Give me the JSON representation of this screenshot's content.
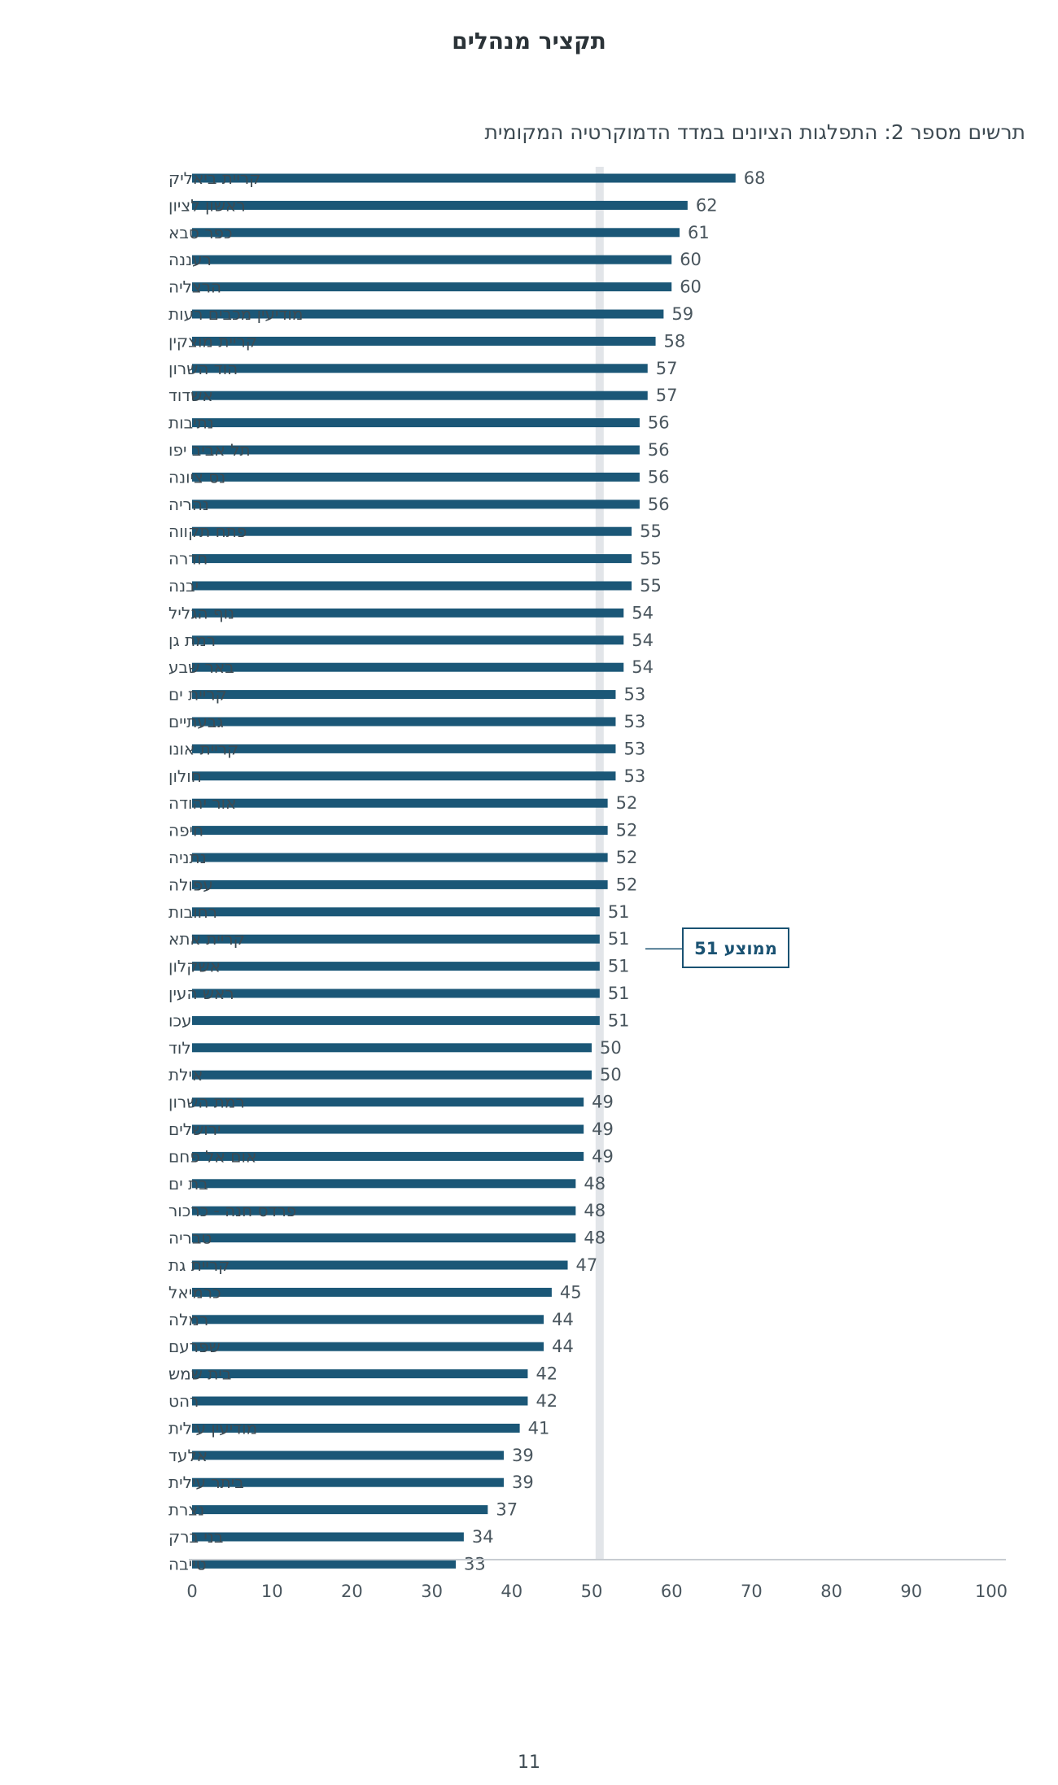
{
  "page": {
    "title": "תקציר מנהלים",
    "page_number": "11"
  },
  "chart_data": {
    "type": "bar",
    "orientation": "horizontal",
    "title": "תרשים מספר 2: התפלגות הציונים במדד הדמוקרטיה המקומית",
    "categories": [
      "קריית ביאליק",
      "ראשון לציון",
      "כפר סבא",
      "רעננה",
      "הרצליה",
      "מודיעין מכבים רעות",
      "קריית מוצקין",
      "הוד השרון",
      "אשדוד",
      "נתיבות",
      "תל אביב יפו",
      "נס ציונה",
      "נהריה",
      "פתח תקווה",
      "חדרה",
      "יבנה",
      "נוף הגליל",
      "רמת גן",
      "באר שבע",
      "קריית ים",
      "גבעתיים",
      "קריית אונו",
      "חולון",
      "אור יהודה",
      "חיפה",
      "נתניה",
      "עפולה",
      "רחובות",
      "קריית אתא",
      "אשקלון",
      "ראש העין",
      "עכו",
      "לוד",
      "אילת",
      "רמת השרון",
      "ירושלים",
      "אום אל פחם",
      "בת ים",
      "פרדס חנה - כרכור",
      "טבריה",
      "קריית גת",
      "כרמיאל",
      "רמלה",
      "שפרעם",
      "בית שמש",
      "רהט",
      "מודיעין עילית",
      "אלעד",
      "ביתר עילית",
      "נצרת",
      "בני ברק",
      "טייבה"
    ],
    "values": [
      68,
      62,
      61,
      60,
      60,
      59,
      58,
      57,
      57,
      56,
      56,
      56,
      56,
      55,
      55,
      55,
      54,
      54,
      54,
      53,
      53,
      53,
      53,
      52,
      52,
      52,
      52,
      51,
      51,
      51,
      51,
      51,
      50,
      50,
      49,
      49,
      49,
      48,
      48,
      48,
      47,
      45,
      44,
      44,
      42,
      42,
      41,
      39,
      39,
      37,
      34,
      33
    ],
    "xlim": [
      0,
      100
    ],
    "xticks": [
      0,
      10,
      20,
      30,
      40,
      50,
      60,
      70,
      80,
      90,
      100
    ],
    "average": {
      "value": 51,
      "label": "ממוצע 51"
    },
    "colors": {
      "bar": "#1b5777",
      "average_line": "#e2e5e9",
      "axis": "#c7ccd1"
    },
    "grid": false,
    "legend": "none"
  }
}
